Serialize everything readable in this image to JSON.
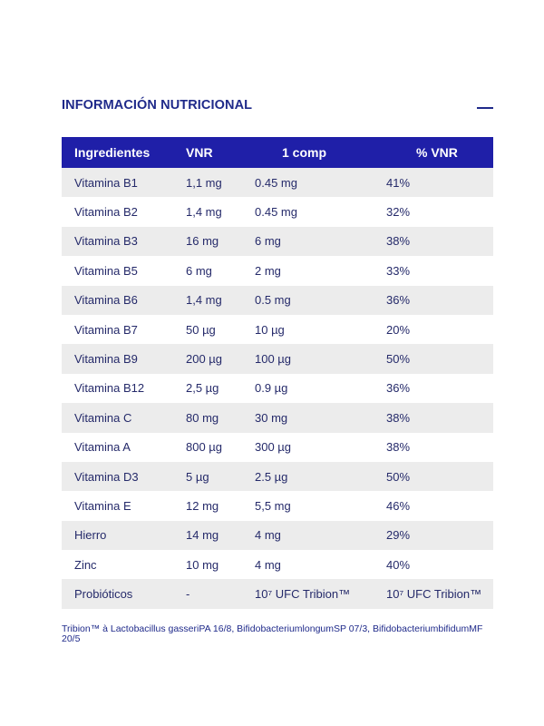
{
  "title": "INFORMACIÓN NUTRICIONAL",
  "table": {
    "headers": [
      "Ingredientes",
      "VNR",
      "1 comp",
      "% VNR"
    ],
    "rows": [
      [
        "Vitamina B1",
        "1,1 mg",
        "0.45 mg",
        "41%"
      ],
      [
        "Vitamina B2",
        "1,4 mg",
        "0.45 mg",
        "32%"
      ],
      [
        "Vitamina B3",
        "16 mg",
        "6 mg",
        "38%"
      ],
      [
        "Vitamina B5",
        "6 mg",
        "2 mg",
        "33%"
      ],
      [
        "Vitamina B6",
        "1,4 mg",
        "0.5 mg",
        "36%"
      ],
      [
        "Vitamina B7",
        "50 µg",
        "10 µg",
        "20%"
      ],
      [
        "Vitamina B9",
        "200 µg",
        "100 µg",
        "50%"
      ],
      [
        "Vitamina B12",
        "2,5 µg",
        "0.9 µg",
        "36%"
      ],
      [
        "Vitamina C",
        "80 mg",
        "30 mg",
        "38%"
      ],
      [
        "Vitamina A",
        "800 µg",
        "300 µg",
        "38%"
      ],
      [
        "Vitamina D3",
        "5 µg",
        "2.5 µg",
        "50%"
      ],
      [
        "Vitamina E",
        "12 mg",
        "5,5 mg",
        "46%"
      ],
      [
        "Hierro",
        "14 mg",
        "4 mg",
        "29%"
      ],
      [
        "Zinc",
        "10 mg",
        "4 mg",
        "40%"
      ],
      [
        "Probióticos",
        "-",
        "10⁷ UFC Tribion™",
        "10⁷ UFC Tribion™"
      ]
    ]
  },
  "footnote": "Tribion™ à Lactobacillus gasseriPA 16/8, BifidobacteriumlongumSP 07/3, BifidobacteriumbifidumMF 20/5",
  "colors": {
    "header_bg": "#1f1fa8",
    "title": "#1f2a8a",
    "stripe": "#ececec"
  },
  "icons": {
    "collapse": "minus-icon"
  }
}
